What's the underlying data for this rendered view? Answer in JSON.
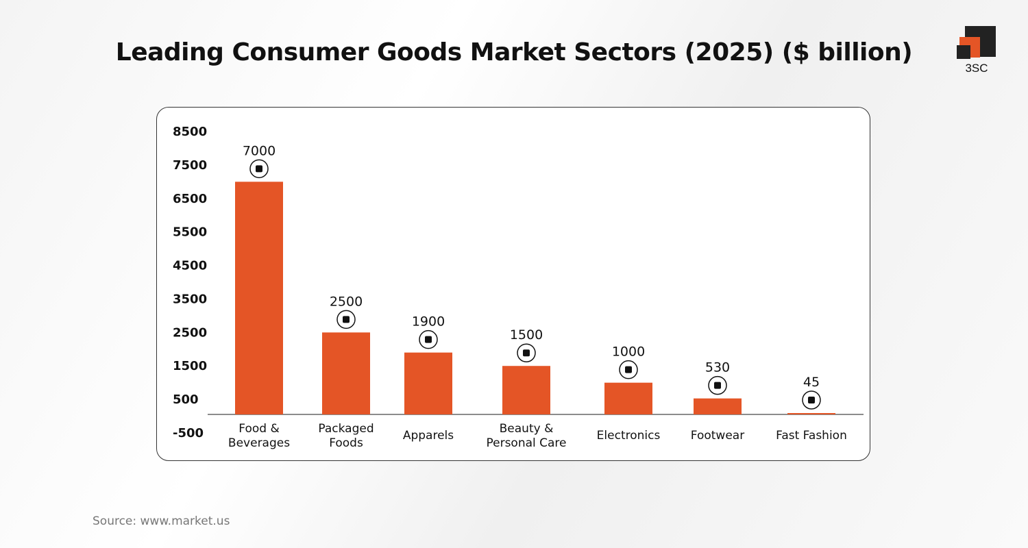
{
  "title": "Leading Consumer Goods Market Sectors (2025) ($ billion)",
  "source": "Source: www.market.us",
  "logo": {
    "text": "3SC"
  },
  "colors": {
    "bar": "#E45526",
    "logo_dark": "#222222",
    "logo_accent": "#E45526"
  },
  "chart_data": {
    "type": "bar",
    "title": "Leading Consumer Goods Market Sectors (2025) ($ billion)",
    "categories": [
      [
        "Food &",
        "Beverages"
      ],
      [
        "Packaged",
        "Foods"
      ],
      [
        "Apparels"
      ],
      [
        "Beauty &",
        "Personal Care"
      ],
      [
        "Electronics"
      ],
      [
        "Footwear"
      ],
      [
        "Fast Fashion"
      ]
    ],
    "values": [
      7000,
      2500,
      1900,
      1500,
      1000,
      530,
      45
    ],
    "value_labels": [
      "7000",
      "2500",
      "1900",
      "1500",
      "1000",
      "530",
      "45"
    ],
    "icons": [
      "food-beverage-icon",
      "packaged-food-icon",
      "tshirt-icon",
      "cosmetics-icon",
      "monitor-icon",
      "shoe-icon",
      "fashion-hat-icon"
    ],
    "yticks": [
      "8500",
      "7500",
      "6500",
      "5500",
      "4500",
      "3500",
      "2500",
      "1500",
      "500",
      "-500"
    ],
    "ylim": [
      -500,
      8500
    ],
    "grid": false,
    "legend": "none"
  }
}
